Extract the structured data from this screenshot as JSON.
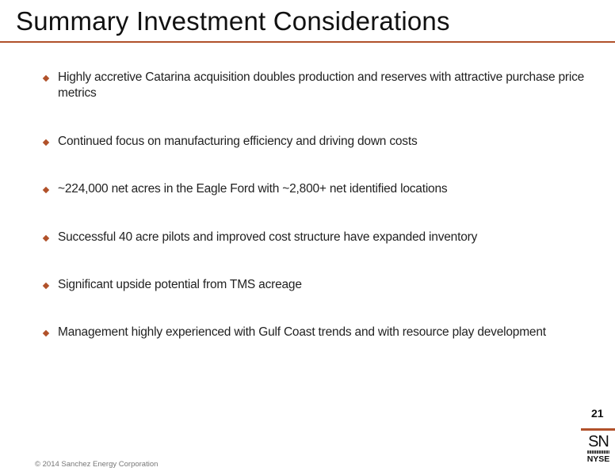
{
  "slide": {
    "title": "Summary Investment Considerations",
    "bullets": [
      "Highly accretive Catarina acquisition doubles production and reserves with attractive purchase price metrics",
      "Continued focus on manufacturing efficiency and driving down costs",
      "~224,000 net acres in the Eagle Ford with ~2,800+ net identified locations",
      "Successful 40 acre pilots and improved cost structure have expanded inventory",
      "Significant upside potential from TMS acreage",
      "Management highly experienced with Gulf Coast trends and with resource play development"
    ],
    "page_number": "21",
    "copyright": "© 2014 Sanchez Energy Corporation"
  },
  "logo": {
    "ticker": "SN",
    "exchange": "NYSE"
  },
  "colors": {
    "accent": "#b1512a",
    "text": "#222222",
    "muted": "#777777"
  }
}
